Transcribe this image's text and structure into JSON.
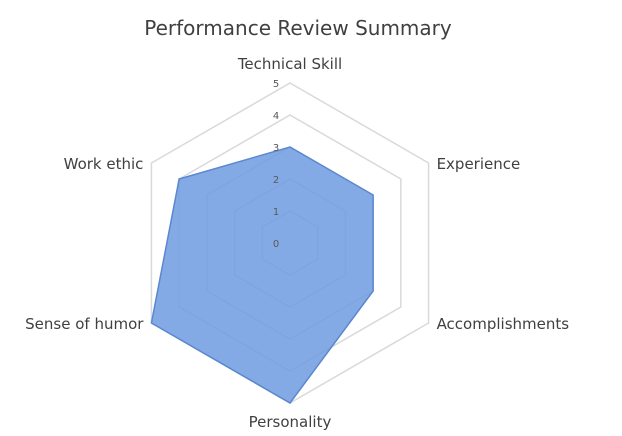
{
  "chart_data": {
    "type": "radar",
    "title": "Performance Review Summary",
    "categories": [
      "Technical Skill",
      "Experience",
      "Accomplishments",
      "Personality",
      "Sense of humor",
      "Work ethic"
    ],
    "series": [
      {
        "values": [
          3,
          3,
          3,
          5,
          5,
          4
        ]
      }
    ],
    "r_ticks": [
      0,
      1,
      2,
      3,
      4,
      5
    ],
    "r_range": [
      0,
      5
    ],
    "grid": true,
    "legend": "none",
    "colors": {
      "fill": "#6f9be0",
      "stroke": "#5a87d0",
      "grid": "#d9d9d9",
      "text": "#404040"
    }
  }
}
